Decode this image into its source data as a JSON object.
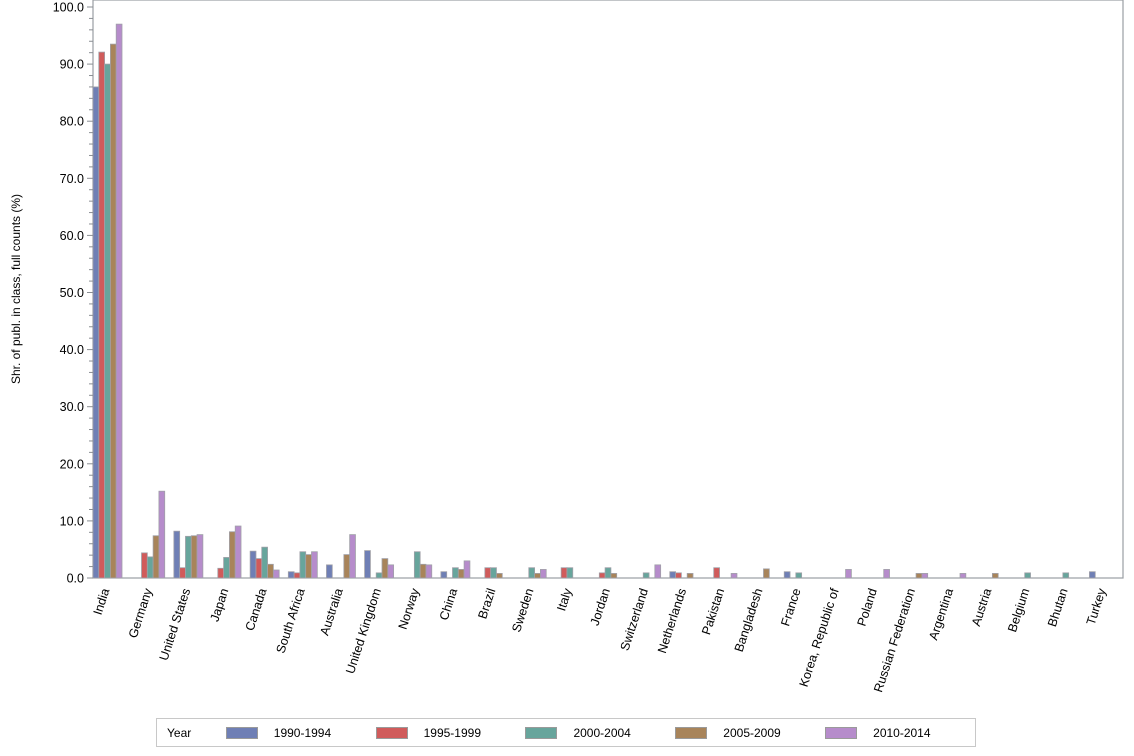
{
  "chart_data": {
    "type": "bar",
    "title": "",
    "xlabel": "",
    "ylabel": "Shr. of publ. in class, full counts (%)",
    "ylim": [
      0,
      100
    ],
    "yticks": [
      "0.0",
      "10.0",
      "20.0",
      "30.0",
      "40.0",
      "50.0",
      "60.0",
      "70.0",
      "80.0",
      "90.0",
      "100.0"
    ],
    "grid": false,
    "legend_position": "bottom",
    "legend_title": "Year",
    "categories": [
      "India",
      "Germany",
      "United States",
      "Japan",
      "Canada",
      "South Africa",
      "Australia",
      "United Kingdom",
      "Norway",
      "China",
      "Brazil",
      "Sweden",
      "Italy",
      "Jordan",
      "Switzerland",
      "Netherlands",
      "Pakistan",
      "Bangladesh",
      "France",
      "Korea, Republic of",
      "Poland",
      "Russian Federation",
      "Argentina",
      "Austria",
      "Belgium",
      "Bhutan",
      "Turkey"
    ],
    "series": [
      {
        "name": "1990-1994",
        "color": "#6f7fb5",
        "values": [
          86.0,
          0,
          8.2,
          0,
          4.7,
          1.1,
          2.3,
          4.8,
          0,
          1.1,
          0,
          0,
          0,
          0,
          0,
          1.1,
          0,
          0,
          1.1,
          0,
          0,
          0,
          0,
          0,
          0,
          0,
          1.1
        ]
      },
      {
        "name": "1995-1999",
        "color": "#d05b5b",
        "values": [
          92.1,
          4.4,
          1.8,
          1.7,
          3.4,
          0.9,
          0,
          0,
          0,
          0,
          1.8,
          0,
          1.8,
          0.9,
          0,
          0.9,
          1.8,
          0,
          0,
          0,
          0,
          0,
          0,
          0,
          0,
          0,
          0
        ]
      },
      {
        "name": "2000-2004",
        "color": "#67a59c",
        "values": [
          90.0,
          3.7,
          7.3,
          3.6,
          5.4,
          4.6,
          0,
          0.9,
          4.6,
          1.8,
          1.8,
          1.8,
          1.8,
          1.8,
          0.9,
          0,
          0,
          0,
          0.9,
          0,
          0,
          0,
          0,
          0,
          0.9,
          0.9,
          0
        ]
      },
      {
        "name": "2005-2009",
        "color": "#a8845a",
        "values": [
          93.5,
          7.4,
          7.4,
          8.1,
          2.4,
          4.1,
          4.1,
          3.4,
          2.4,
          1.5,
          0.8,
          0.8,
          0,
          0.8,
          0,
          0.8,
          0,
          1.6,
          0,
          0,
          0,
          0.8,
          0,
          0.8,
          0,
          0,
          0
        ]
      },
      {
        "name": "2010-2014",
        "color": "#b68ccb",
        "values": [
          97.0,
          15.2,
          7.6,
          9.1,
          1.4,
          4.6,
          7.6,
          2.3,
          2.3,
          3.0,
          0,
          1.5,
          0,
          0,
          2.3,
          0,
          0.8,
          0,
          0,
          1.5,
          1.5,
          0.8,
          0.8,
          0,
          0,
          0,
          0
        ]
      }
    ]
  },
  "legend": {
    "title": "Year",
    "items": [
      {
        "label": "1990-1994",
        "color": "#6f7fb5"
      },
      {
        "label": "1995-1999",
        "color": "#d05b5b"
      },
      {
        "label": "2000-2004",
        "color": "#67a59c"
      },
      {
        "label": "2005-2009",
        "color": "#a8845a"
      },
      {
        "label": "2010-2014",
        "color": "#b68ccb"
      }
    ]
  },
  "axis": {
    "ylabel": "Shr. of publ. in class, full counts (%)"
  }
}
